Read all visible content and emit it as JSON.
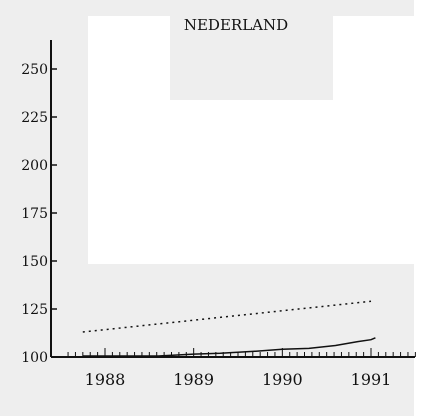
{
  "chart_data": {
    "type": "line",
    "title": "NEDERLAND",
    "xlabel": "",
    "ylabel": "",
    "x_ticks": [
      1988,
      1989,
      1990,
      1991
    ],
    "y_ticks": [
      100,
      125,
      150,
      175,
      200,
      225,
      250
    ],
    "ylim": [
      100,
      265
    ],
    "xlim": [
      1987.55,
      1991.5
    ],
    "grid": false,
    "series": [
      {
        "style": "solid",
        "points": [
          [
            1987.75,
            100.5
          ],
          [
            1988.2,
            100.5
          ],
          [
            1988.6,
            100.5
          ],
          [
            1989.0,
            101.5
          ],
          [
            1989.3,
            102
          ],
          [
            1989.7,
            103
          ],
          [
            1990.0,
            104
          ],
          [
            1990.3,
            104.5
          ],
          [
            1990.6,
            106
          ],
          [
            1990.85,
            108
          ],
          [
            1991.0,
            109
          ],
          [
            1991.05,
            110
          ]
        ]
      },
      {
        "style": "dotted",
        "points": [
          [
            1987.75,
            113
          ],
          [
            1991.0,
            129
          ]
        ]
      }
    ],
    "colors": {
      "background": "#ffffff",
      "shade": "#eeeeee",
      "ink": "#111111"
    }
  }
}
